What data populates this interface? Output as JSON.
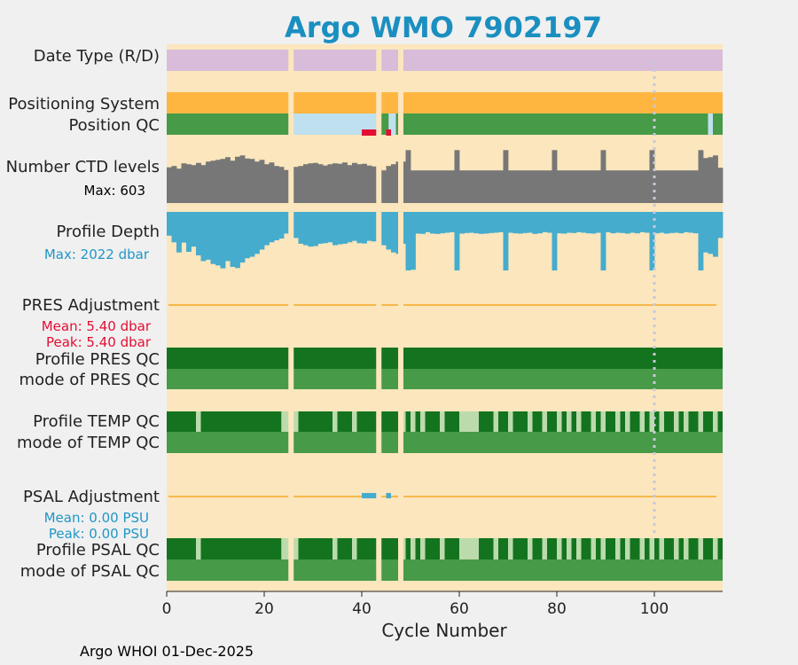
{
  "title": "Argo WMO 7902197",
  "footer": "Argo WHOI 01-Dec-2025",
  "chart_data": {
    "type": "float-timeline",
    "xlabel": "Cycle Number",
    "xlim": [
      0,
      114
    ],
    "xticks": [
      0,
      20,
      40,
      60,
      80,
      100
    ],
    "xtick_labels": [
      "0",
      "20",
      "40",
      "60",
      "80",
      "100"
    ],
    "gaps": [
      25.5,
      43.5,
      48
    ],
    "marker_cycle": 100,
    "colors": {
      "background": "#fbe6bd",
      "date_type": "#d9bcd9",
      "positioning": "#ffb641",
      "qc_good": "#479a47",
      "qc_dark": "#14731f",
      "qc_light": "#bcdbac",
      "qc_interp": "#bfe0ee",
      "qc_bad": "#e40e34",
      "ctd": "#777777",
      "depth": "#45acce",
      "adjust_line": "#f6b94b",
      "marker": "#c8c8d8",
      "pres_stat": "#e40e34",
      "psal_stat": "#2196c6"
    },
    "rows": {
      "date_type": {
        "label": "Date Type (R/D)"
      },
      "positioning_system": {
        "label": "Positioning System"
      },
      "position_qc": {
        "label": "Position QC",
        "light_cycles": [
          [
            25,
            43.5
          ],
          [
            45.5,
            47
          ],
          [
            47.5,
            48.5
          ],
          [
            111,
            112
          ]
        ],
        "bad_cycles": [
          [
            40,
            43
          ],
          [
            45,
            46
          ]
        ]
      },
      "ctd_levels": {
        "label": "Number CTD levels",
        "max_label": "Max: 603",
        "max": 603,
        "values": [
          405,
          420,
          390,
          450,
          440,
          430,
          455,
          430,
          470,
          480,
          490,
          500,
          520,
          480,
          525,
          540,
          505,
          500,
          470,
          490,
          440,
          460,
          420,
          410,
          375,
          360,
          410,
          420,
          440,
          450,
          455,
          440,
          425,
          440,
          450,
          445,
          460,
          430,
          455,
          440,
          445,
          425,
          415,
          390,
          370,
          420,
          440,
          470,
          470,
          600,
          370,
          370,
          370,
          370,
          370,
          370,
          370,
          370,
          370,
          600,
          370,
          370,
          370,
          370,
          370,
          370,
          370,
          370,
          370,
          600,
          370,
          370,
          370,
          370,
          370,
          370,
          370,
          370,
          370,
          600,
          370,
          370,
          370,
          370,
          370,
          370,
          370,
          370,
          370,
          600,
          370,
          370,
          370,
          370,
          370,
          370,
          370,
          370,
          370,
          600,
          370,
          370,
          370,
          370,
          370,
          370,
          370,
          370,
          370,
          600,
          510,
          520,
          540,
          400
        ]
      },
      "profile_depth": {
        "label": "Profile Depth",
        "max_label": "Max: 2022 dbar",
        "max": 2022,
        "values": [
          820,
          1050,
          1400,
          1060,
          1380,
          1200,
          1500,
          1700,
          1650,
          1800,
          1850,
          1950,
          1700,
          1900,
          1940,
          1750,
          1600,
          1550,
          1450,
          1300,
          1150,
          1050,
          980,
          920,
          750,
          720,
          900,
          1100,
          1150,
          1200,
          1180,
          1100,
          1080,
          1050,
          1150,
          1120,
          1100,
          1050,
          1000,
          1080,
          1090,
          1000,
          1020,
          950,
          1150,
          1300,
          1400,
          1450,
          1100,
          2022,
          2000,
          750,
          760,
          700,
          750,
          760,
          740,
          720,
          700,
          2022,
          750,
          730,
          720,
          740,
          760,
          750,
          730,
          720,
          700,
          2022,
          720,
          740,
          750,
          730,
          720,
          760,
          740,
          700,
          720,
          2022,
          740,
          750,
          720,
          730,
          700,
          720,
          740,
          750,
          720,
          2022,
          700,
          740,
          720,
          730,
          750,
          720,
          740,
          700,
          720,
          2022,
          740,
          720,
          750,
          730,
          720,
          740,
          700,
          720,
          740,
          2022,
          1400,
          1450,
          1550,
          900
        ]
      },
      "pres_adjustment": {
        "label": "PRES Adjustment",
        "mean_label": "Mean: 5.40 dbar",
        "peak_label": "Peak: 5.40 dbar"
      },
      "profile_pres_qc": {
        "label": "Profile PRES QC",
        "dark_cycles": [
          [
            0,
            114
          ]
        ]
      },
      "mode_pres_qc": {
        "label": "mode of PRES QC"
      },
      "profile_temp_qc": {
        "label": "Profile TEMP QC",
        "light_cycles": [
          [
            6,
            7
          ],
          [
            23.5,
            25
          ],
          [
            26,
            27
          ],
          [
            34,
            35
          ],
          [
            38,
            39
          ],
          [
            48,
            49
          ],
          [
            50,
            51
          ],
          [
            52,
            53
          ],
          [
            56,
            57
          ],
          [
            60,
            64
          ],
          [
            67,
            68
          ],
          [
            70,
            71
          ],
          [
            74,
            75
          ],
          [
            77,
            78
          ],
          [
            80,
            81
          ],
          [
            82,
            83
          ],
          [
            84,
            85
          ],
          [
            87,
            88
          ],
          [
            89,
            90
          ],
          [
            92,
            93
          ],
          [
            94,
            95
          ],
          [
            97,
            98
          ],
          [
            99,
            100
          ],
          [
            101,
            102
          ],
          [
            104,
            105
          ],
          [
            106,
            107
          ],
          [
            109,
            110
          ],
          [
            112,
            113
          ]
        ]
      },
      "mode_temp_qc": {
        "label": "mode of TEMP QC"
      },
      "psal_adjustment": {
        "label": "PSAL Adjustment",
        "mean_label": "Mean: 0.00 PSU",
        "peak_label": "Peak: 0.00 PSU",
        "marks": [
          [
            40,
            43
          ],
          [
            45,
            46
          ]
        ]
      },
      "profile_psal_qc": {
        "label": "Profile PSAL QC",
        "light_cycles": [
          [
            6,
            7
          ],
          [
            23.5,
            25
          ],
          [
            26,
            27
          ],
          [
            34,
            35
          ],
          [
            38,
            39
          ],
          [
            48,
            49
          ],
          [
            50,
            51
          ],
          [
            52,
            53
          ],
          [
            56,
            57
          ],
          [
            60,
            64
          ],
          [
            67,
            68
          ],
          [
            70,
            71
          ],
          [
            74,
            75
          ],
          [
            77,
            78
          ],
          [
            80,
            81
          ],
          [
            82,
            83
          ],
          [
            84,
            85
          ],
          [
            87,
            88
          ],
          [
            89,
            90
          ],
          [
            92,
            93
          ],
          [
            94,
            95
          ],
          [
            97,
            98
          ],
          [
            99,
            100
          ],
          [
            101,
            102
          ],
          [
            104,
            105
          ],
          [
            106,
            107
          ],
          [
            109,
            110
          ],
          [
            112,
            113
          ]
        ]
      },
      "mode_psal_qc": {
        "label": "mode of PSAL QC"
      }
    }
  }
}
